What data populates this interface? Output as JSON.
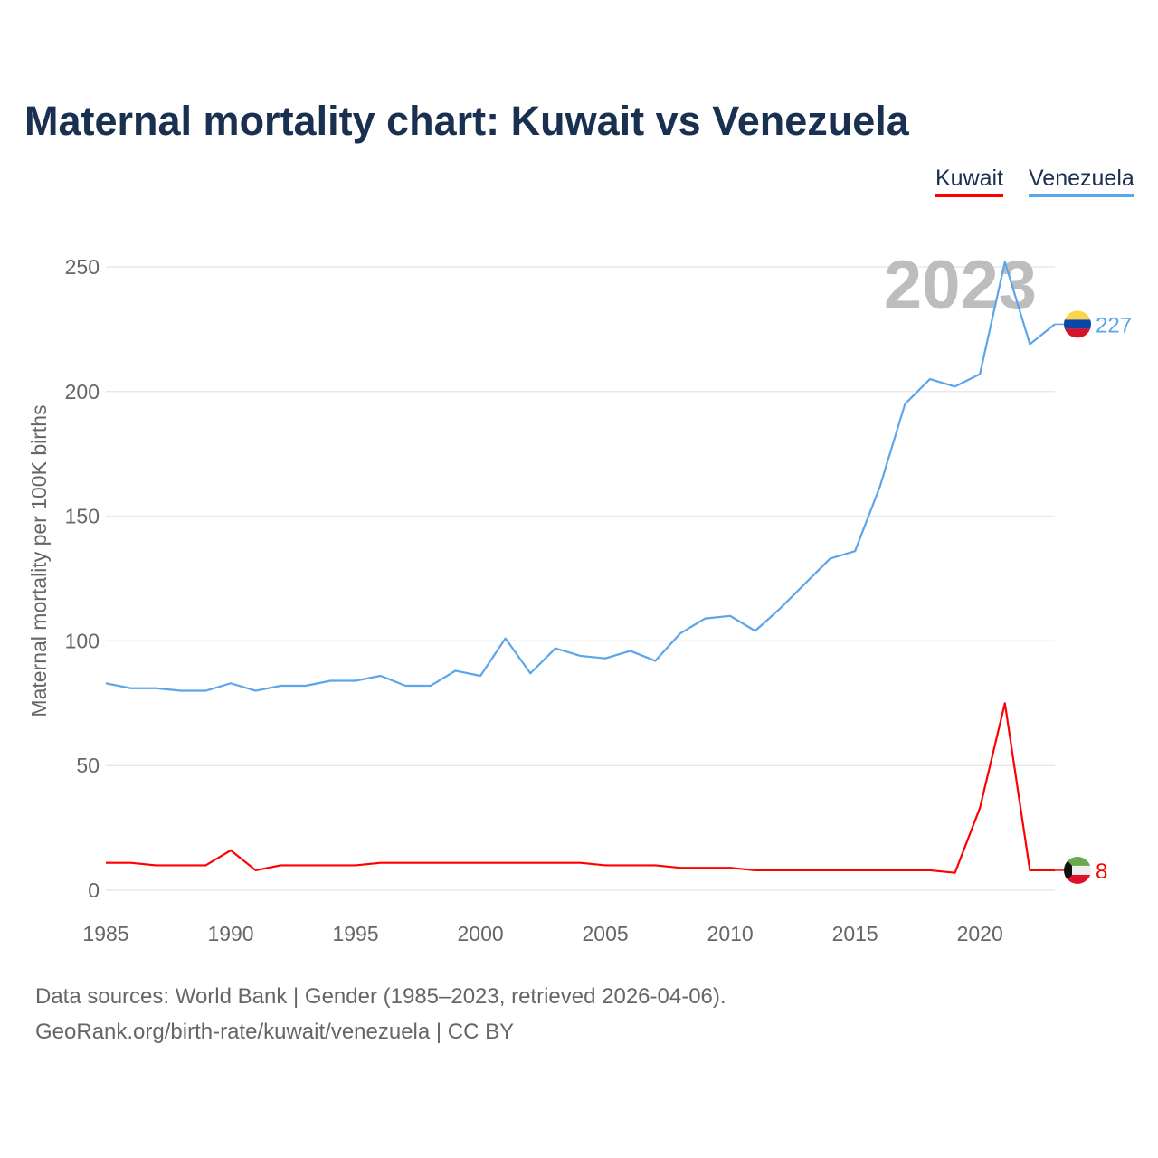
{
  "title": "Maternal mortality chart: Kuwait vs Venezuela",
  "source_line1": "Data sources: World Bank | Gender (1985–2023, retrieved 2026-04-06).",
  "source_line2": "GeoRank.org/birth-rate/kuwait/venezuela | CC BY",
  "chart_data": {
    "type": "line",
    "title": "Maternal mortality chart: Kuwait vs Venezuela",
    "xlabel": "",
    "ylabel": "Maternal mortality per 100K births",
    "year_label": "2023",
    "xlim": [
      1985,
      2023
    ],
    "ylim": [
      0,
      250
    ],
    "xticks": [
      "1985",
      "1990",
      "1995",
      "2000",
      "2005",
      "2010",
      "2015",
      "2020"
    ],
    "yticks": [
      "0",
      "50",
      "100",
      "150",
      "200",
      "250"
    ],
    "grid": true,
    "legend_placement": "top-right",
    "x": [
      1985,
      1986,
      1987,
      1988,
      1989,
      1990,
      1991,
      1992,
      1993,
      1994,
      1995,
      1996,
      1997,
      1998,
      1999,
      2000,
      2001,
      2002,
      2003,
      2004,
      2005,
      2006,
      2007,
      2008,
      2009,
      2010,
      2011,
      2012,
      2013,
      2014,
      2015,
      2016,
      2017,
      2018,
      2019,
      2020,
      2021,
      2022,
      2023
    ],
    "series": [
      {
        "name": "Kuwait",
        "color": "#ff0000",
        "end_label": "8",
        "values": [
          11,
          11,
          10,
          10,
          10,
          16,
          8,
          10,
          10,
          10,
          10,
          11,
          11,
          11,
          11,
          11,
          11,
          11,
          11,
          11,
          10,
          10,
          10,
          9,
          9,
          9,
          8,
          8,
          8,
          8,
          8,
          8,
          8,
          8,
          7,
          33,
          75,
          8,
          8
        ]
      },
      {
        "name": "Venezuela",
        "color": "#5aa5eb",
        "end_label": "227",
        "values": [
          83,
          81,
          81,
          80,
          80,
          83,
          80,
          82,
          82,
          84,
          84,
          86,
          82,
          82,
          88,
          86,
          101,
          87,
          97,
          94,
          93,
          96,
          92,
          103,
          109,
          110,
          104,
          113,
          123,
          133,
          136,
          162,
          195,
          205,
          202,
          207,
          252,
          219,
          227
        ]
      }
    ]
  }
}
